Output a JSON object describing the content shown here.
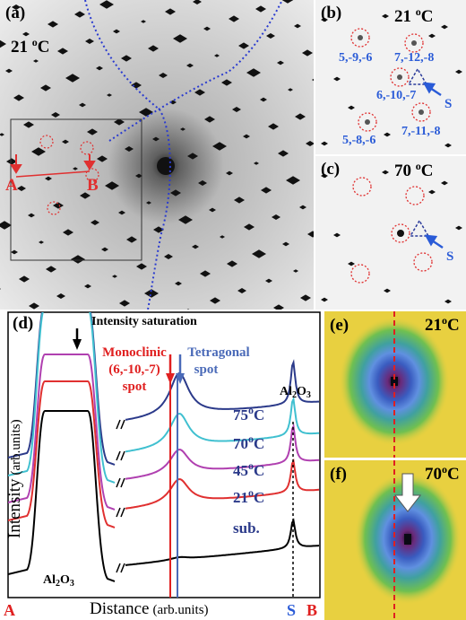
{
  "panels": {
    "a": {
      "label": "(a)",
      "temp": {
        "value": "21 ",
        "sup": "o",
        "unit": "C"
      },
      "points": [
        "A",
        "B"
      ]
    },
    "b": {
      "label": "(b)",
      "temp": {
        "value": "21 ",
        "sup": "o",
        "unit": "C"
      },
      "spots": [
        "5,-9,-6",
        "7,-12,-8",
        "6,-10,-7",
        "5,-8,-6",
        "7,-11,-8"
      ],
      "marker": "S"
    },
    "c": {
      "label": "(c)",
      "temp": {
        "value": "70 ",
        "sup": "o",
        "unit": "C"
      },
      "marker": "S"
    },
    "d": {
      "label": "(d)",
      "annotation": "Intensity saturation",
      "monoclinic": [
        "Monoclinic",
        "(6,-10,-7)",
        "spot"
      ],
      "tetragonal": [
        "Tetragonal",
        "spot"
      ],
      "substrate": {
        "base": "Al",
        "sub1": "2",
        "mid": "O",
        "sub2": "3"
      },
      "curves": [
        {
          "value": "75",
          "sup": "o",
          "unit": "C"
        },
        {
          "value": "70",
          "sup": "o",
          "unit": "C"
        },
        {
          "value": "45",
          "sup": "o",
          "unit": "C"
        },
        {
          "value": "21",
          "sup": "o",
          "unit": "C"
        },
        {
          "value": "sub."
        }
      ],
      "y_label": "Intensity",
      "y_unit": "(arb.units)",
      "x_label": "Distance",
      "x_unit": "(arb.units)",
      "x_points": [
        "A",
        "S",
        "B"
      ]
    },
    "e": {
      "label": "(e)",
      "temp": {
        "value": "21",
        "sup": "o",
        "unit": "C"
      }
    },
    "f": {
      "label": "(f)",
      "temp": {
        "value": "70",
        "sup": "o",
        "unit": "C"
      }
    }
  }
}
